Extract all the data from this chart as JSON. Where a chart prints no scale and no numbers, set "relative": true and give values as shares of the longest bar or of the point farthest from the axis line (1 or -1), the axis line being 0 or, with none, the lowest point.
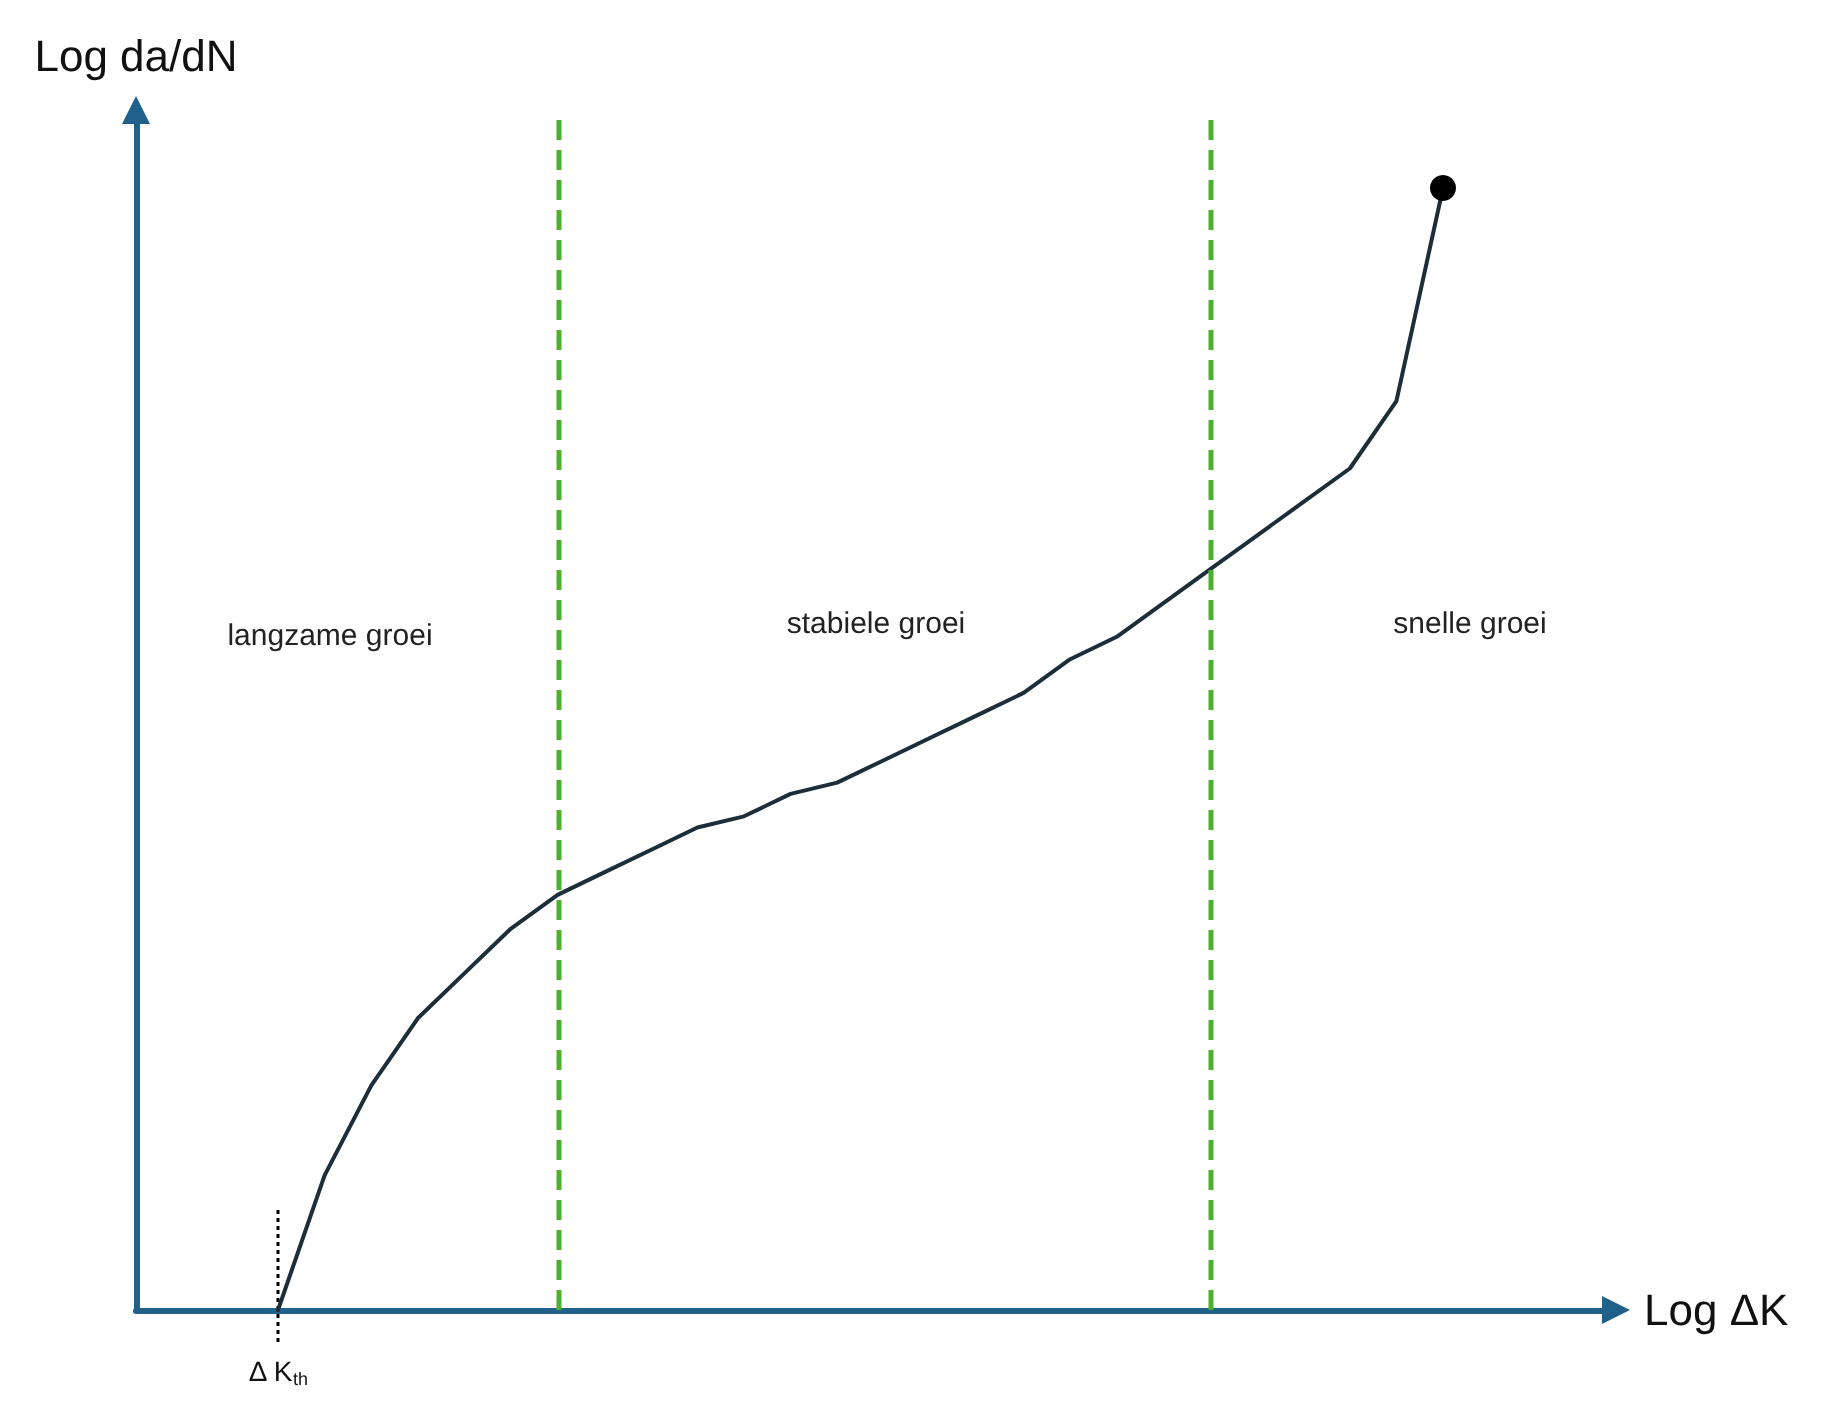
{
  "chart_data": {
    "type": "line",
    "relative": true,
    "xlabel": "Log ΔK",
    "ylabel": "Log da/dN",
    "line_style": "solid",
    "categories": [
      null,
      null,
      null,
      null,
      null,
      null,
      null,
      null,
      null,
      null,
      null,
      null,
      null,
      null,
      null,
      null,
      null,
      null,
      null,
      null,
      null,
      null,
      null,
      null,
      null,
      null
    ],
    "series": [
      {
        "color": "#1b2e3a",
        "values": [
          0,
          0.12,
          0.2,
          0.26,
          0.3,
          0.34,
          0.37,
          0.39,
          0.41,
          0.43,
          0.44,
          0.46,
          0.47,
          0.49,
          0.51,
          0.53,
          0.55,
          0.58,
          0.6,
          0.63,
          0.66,
          0.69,
          0.72,
          0.75,
          0.81,
          1.0
        ]
      }
    ],
    "annotations": [
      "langzame groei",
      "stabiele groei",
      "snelle groei",
      "Δ K$_{th}$"
    ]
  }
}
